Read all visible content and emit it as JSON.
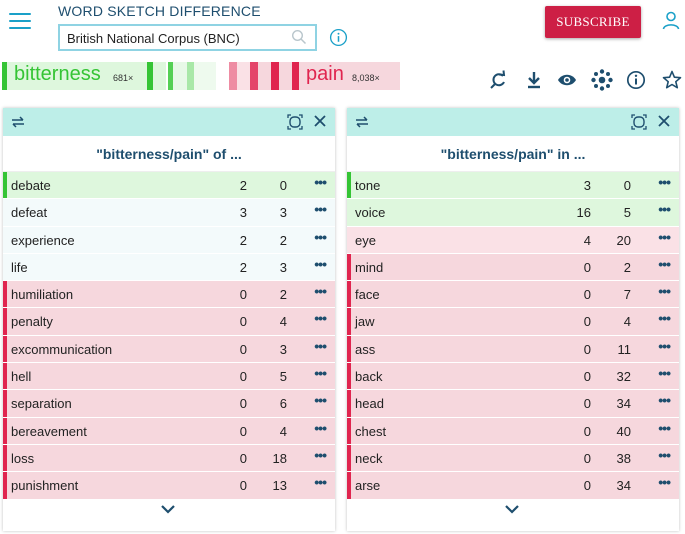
{
  "header": {
    "app_title": "WORD SKETCH DIFFERENCE",
    "corpus_value": "British National Corpus (BNC)",
    "subscribe_label": "SUBSCRIBE"
  },
  "legend": {
    "word1": "bitterness",
    "word1_count": "681×",
    "word2": "pain",
    "word2_count": "8,038×",
    "colors": {
      "word1": "#35c435",
      "word2": "#e0254f"
    }
  },
  "toolbar_icons": [
    "reload-icon",
    "download-icon",
    "eye-icon",
    "cluster-icon",
    "info-icon",
    "star-icon"
  ],
  "colors": {
    "green_row": "#def7dd",
    "green_mark": "#35c435",
    "neutral_row": "#f3fafb",
    "pink_light_row": "#fae1e6",
    "pink_row": "#f6d7dd",
    "red_mark": "#e0254f"
  },
  "panels": [
    {
      "title": "\"bitterness/pain\" of ...",
      "rows": [
        {
          "word": "debate",
          "a": "2",
          "b": "0",
          "tone": "green"
        },
        {
          "word": "defeat",
          "a": "3",
          "b": "3",
          "tone": "neutral"
        },
        {
          "word": "experience",
          "a": "2",
          "b": "2",
          "tone": "neutral"
        },
        {
          "word": "life",
          "a": "2",
          "b": "3",
          "tone": "neutral"
        },
        {
          "word": "humiliation",
          "a": "0",
          "b": "2",
          "tone": "red"
        },
        {
          "word": "penalty",
          "a": "0",
          "b": "4",
          "tone": "red"
        },
        {
          "word": "excommunication",
          "a": "0",
          "b": "3",
          "tone": "red"
        },
        {
          "word": "hell",
          "a": "0",
          "b": "5",
          "tone": "red"
        },
        {
          "word": "separation",
          "a": "0",
          "b": "6",
          "tone": "red"
        },
        {
          "word": "bereavement",
          "a": "0",
          "b": "4",
          "tone": "red"
        },
        {
          "word": "loss",
          "a": "0",
          "b": "18",
          "tone": "red"
        },
        {
          "word": "punishment",
          "a": "0",
          "b": "13",
          "tone": "red"
        }
      ]
    },
    {
      "title": "\"bitterness/pain\" in ...",
      "rows": [
        {
          "word": "tone",
          "a": "3",
          "b": "0",
          "tone": "green"
        },
        {
          "word": "voice",
          "a": "16",
          "b": "5",
          "tone": "green-light"
        },
        {
          "word": "eye",
          "a": "4",
          "b": "20",
          "tone": "pink-light"
        },
        {
          "word": "mind",
          "a": "0",
          "b": "2",
          "tone": "red"
        },
        {
          "word": "face",
          "a": "0",
          "b": "7",
          "tone": "red"
        },
        {
          "word": "jaw",
          "a": "0",
          "b": "4",
          "tone": "red"
        },
        {
          "word": "ass",
          "a": "0",
          "b": "11",
          "tone": "red"
        },
        {
          "word": "back",
          "a": "0",
          "b": "32",
          "tone": "red"
        },
        {
          "word": "head",
          "a": "0",
          "b": "34",
          "tone": "red"
        },
        {
          "word": "chest",
          "a": "0",
          "b": "40",
          "tone": "red"
        },
        {
          "word": "neck",
          "a": "0",
          "b": "38",
          "tone": "red"
        },
        {
          "word": "arse",
          "a": "0",
          "b": "34",
          "tone": "red"
        }
      ]
    }
  ]
}
